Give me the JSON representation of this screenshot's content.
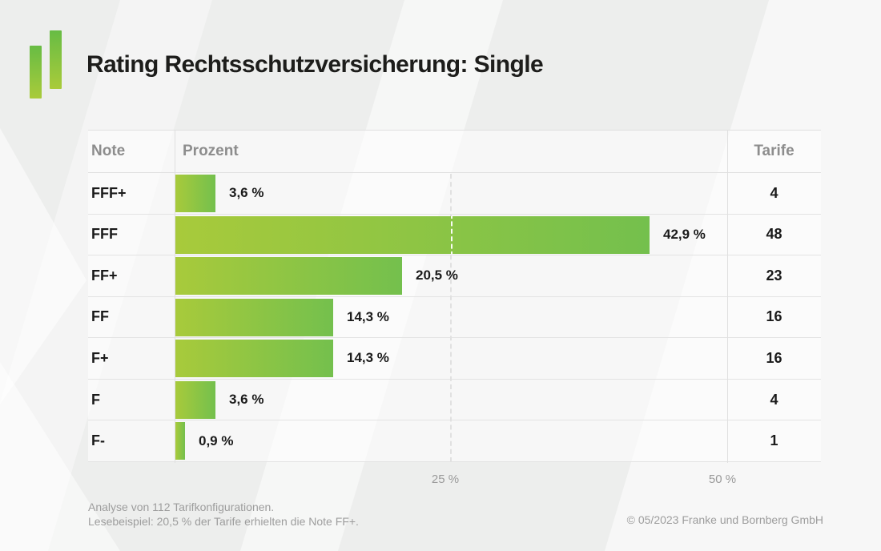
{
  "header": {
    "title": "Rating Rechtsschutzversicherung: Single"
  },
  "logo": {
    "name": "franke-und-bornberg-logo"
  },
  "table": {
    "columns": {
      "note": "Note",
      "prozent": "Prozent",
      "tarife": "Tarife"
    },
    "rows": [
      {
        "note": "FFF+",
        "percent": 3.6,
        "percent_label": "3,6 %",
        "tarife": "4"
      },
      {
        "note": "FFF",
        "percent": 42.9,
        "percent_label": "42,9 %",
        "tarife": "48"
      },
      {
        "note": "FF+",
        "percent": 20.5,
        "percent_label": "20,5 %",
        "tarife": "23"
      },
      {
        "note": "FF",
        "percent": 14.3,
        "percent_label": "14,3 %",
        "tarife": "16"
      },
      {
        "note": "F+",
        "percent": 14.3,
        "percent_label": "14,3 %",
        "tarife": "16"
      },
      {
        "note": "F",
        "percent": 3.6,
        "percent_label": "3,6 %",
        "tarife": "4"
      },
      {
        "note": "F-",
        "percent": 0.9,
        "percent_label": "0,9 %",
        "tarife": "1"
      }
    ]
  },
  "axis": {
    "tick_25": "25 %",
    "tick_50": "50 %"
  },
  "footer": {
    "line1": "Analyse von 112 Tarifkonfigurationen.",
    "line2": "Lesebeispiel: 20,5 % der Tarife erhielten die Note FF+.",
    "copyright": "© 05/2023 Franke und Bornberg GmbH"
  },
  "colors": {
    "bar_gradient_start": "#a8ca3b",
    "bar_gradient_end": "#74c04d",
    "logo_green_top": "#67bc44",
    "logo_green_bottom": "#a9cb3a",
    "title_text": "#1d1d1b",
    "muted_text": "#9d9d9d",
    "header_text": "#8d8d8d",
    "background": "#edeeed"
  },
  "chart_data": {
    "type": "bar",
    "orientation": "horizontal",
    "title": "Rating Rechtsschutzversicherung: Single",
    "categories": [
      "FFF+",
      "FFF",
      "FF+",
      "FF",
      "F+",
      "F",
      "F-"
    ],
    "series": [
      {
        "name": "Prozent",
        "unit": "%",
        "values": [
          3.6,
          42.9,
          20.5,
          14.3,
          14.3,
          3.6,
          0.9
        ]
      },
      {
        "name": "Tarife",
        "values": [
          4,
          48,
          23,
          16,
          16,
          4,
          1
        ]
      }
    ],
    "xlabel": "Prozent",
    "xlim": [
      0,
      50
    ],
    "xticks": [
      25,
      50
    ],
    "xtick_labels": [
      "25 %",
      "50 %"
    ],
    "gridline_dashed_at": 25,
    "legend": "none",
    "source_note": "Analyse von 112 Tarifkonfigurationen."
  }
}
